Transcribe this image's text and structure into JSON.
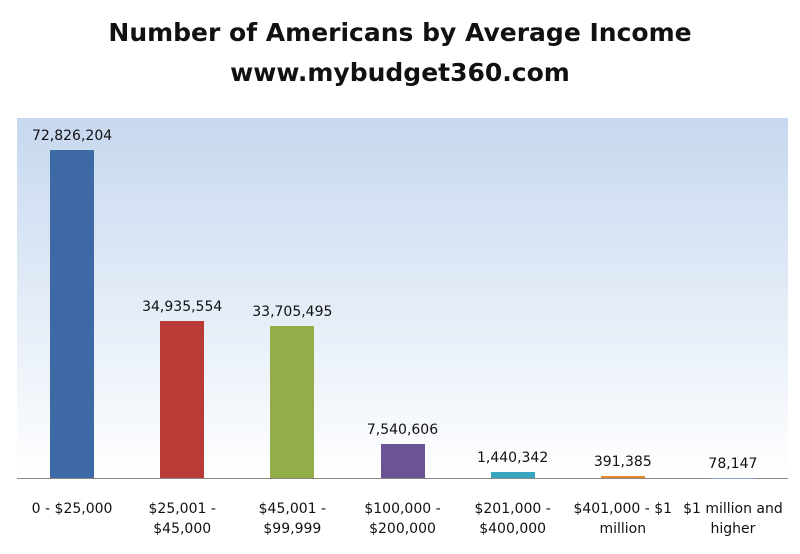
{
  "chart_data": {
    "type": "bar",
    "title": "Number of Americans by Average Income",
    "subtitle": "www.mybudget360.com",
    "categories": [
      "0 - $25,000",
      "$25,001 - $45,000",
      "$45,001 - $99,999",
      "$100,000 - $200,000",
      "$201,000 - $400,000",
      "$401,000 - $1 million",
      "$1 million and higher"
    ],
    "values": [
      72826204,
      34935554,
      33705495,
      7540606,
      1440342,
      391385,
      78147
    ],
    "value_labels": [
      "72,826,204",
      "34,935,554",
      "33,705,495",
      "7,540,606",
      "1,440,342",
      "391,385",
      "78,147"
    ],
    "colors": [
      "#3d69a6",
      "#b83b38",
      "#93ad49",
      "#6c5494",
      "#36a5bf",
      "#e5842b",
      "#8ba6d0"
    ],
    "ylim": [
      0,
      80000000
    ]
  }
}
